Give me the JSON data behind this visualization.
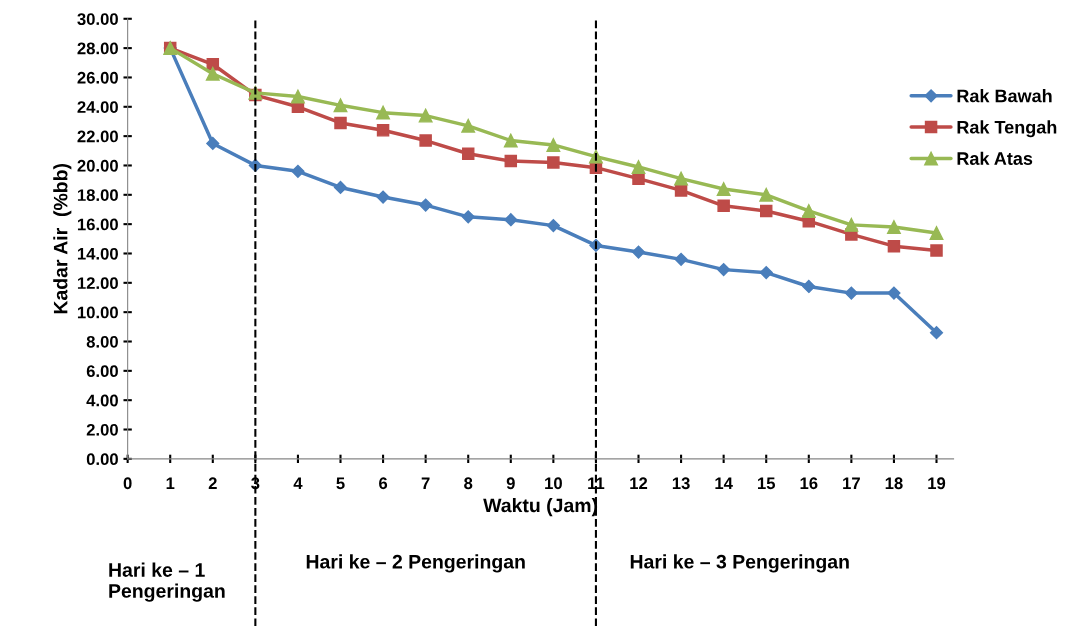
{
  "chart_data": {
    "type": "line",
    "xlabel": "Waktu (Jam)",
    "ylabel": "Kadar Air  (%bb)",
    "x": [
      1,
      2,
      3,
      4,
      5,
      6,
      7,
      8,
      9,
      10,
      11,
      12,
      13,
      14,
      15,
      16,
      17,
      18,
      19
    ],
    "series": [
      {
        "name": "Rak Bawah",
        "color": "#4a7ebb",
        "marker": "diamond",
        "values": [
          28.0,
          21.5,
          20.0,
          19.6,
          18.5,
          17.85,
          17.3,
          16.5,
          16.3,
          15.9,
          14.55,
          14.1,
          13.6,
          12.9,
          12.7,
          11.75,
          11.3,
          11.3,
          8.6
        ]
      },
      {
        "name": "Rak Tengah",
        "color": "#be4b48",
        "marker": "square",
        "values": [
          28.0,
          26.9,
          24.8,
          24.0,
          22.9,
          22.4,
          21.7,
          20.8,
          20.3,
          20.2,
          19.85,
          19.1,
          18.3,
          17.25,
          16.9,
          16.2,
          15.3,
          14.5,
          14.2
        ]
      },
      {
        "name": "Rak Atas",
        "color": "#98b954",
        "marker": "triangle",
        "values": [
          28.0,
          26.25,
          24.95,
          24.7,
          24.1,
          23.6,
          23.4,
          22.7,
          21.7,
          21.4,
          20.6,
          19.9,
          19.1,
          18.4,
          18.0,
          16.9,
          15.95,
          15.8,
          15.4
        ]
      }
    ],
    "xlim": [
      0,
      19.4
    ],
    "xticks": [
      0,
      1,
      2,
      3,
      4,
      5,
      6,
      7,
      8,
      9,
      10,
      11,
      12,
      13,
      14,
      15,
      16,
      17,
      18,
      19
    ],
    "ylim": [
      0,
      30
    ],
    "yticks": [
      {
        "value": 0,
        "label": "0.00"
      },
      {
        "value": 2,
        "label": "2.00"
      },
      {
        "value": 4,
        "label": "4.00"
      },
      {
        "value": 6,
        "label": "6.00"
      },
      {
        "value": 8,
        "label": "8.00"
      },
      {
        "value": 10,
        "label": "10.00"
      },
      {
        "value": 12,
        "label": "12.00"
      },
      {
        "value": 14,
        "label": "14.00"
      },
      {
        "value": 16,
        "label": "16.00"
      },
      {
        "value": 18,
        "label": "18.00"
      },
      {
        "value": 20,
        "label": "20.00"
      },
      {
        "value": 22,
        "label": "22.00"
      },
      {
        "value": 24,
        "label": "24.00"
      },
      {
        "value": 26,
        "label": "26.00"
      },
      {
        "value": 28,
        "label": "28.00"
      },
      {
        "value": 30,
        "label": "30.00"
      }
    ],
    "ref_lines": [
      {
        "axis": "x",
        "value": 3,
        "color": "#000000",
        "line_style": "dashed"
      },
      {
        "axis": "x",
        "value": 11,
        "color": "#000000",
        "line_style": "dashed"
      }
    ],
    "annotations": [
      "Hari ke – 1\nPengeringan",
      "Hari ke – 2 Pengeringan",
      "Hari ke – 3 Pengeringan"
    ],
    "legend": "right",
    "grid": false,
    "line_style": "solid"
  }
}
